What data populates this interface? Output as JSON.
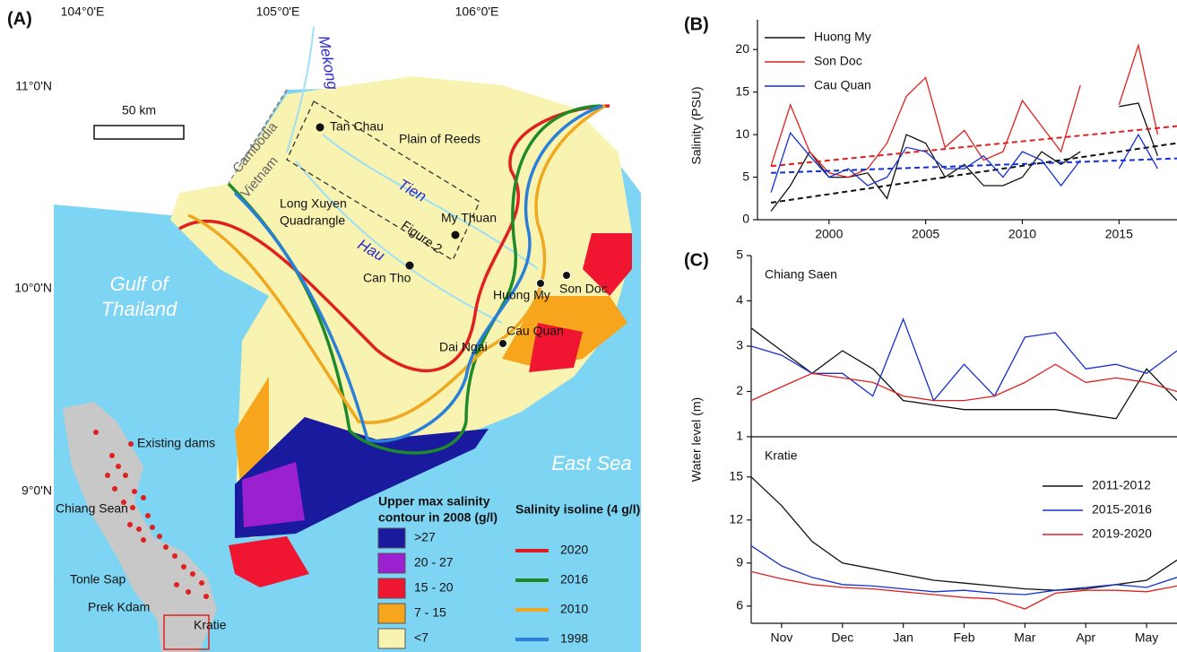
{
  "map": {
    "panel": "(A)",
    "lon_ticks": [
      "104°0'E",
      "105°0'E",
      "106°0'E"
    ],
    "lat_ticks": [
      "11°0'N",
      "10°0'N",
      "9°0'N"
    ],
    "scale": "50 km",
    "rivers": {
      "mekong": "Mekong",
      "tien": "Tien",
      "hau": "Hau"
    },
    "countries": [
      "Cambodia",
      "Vietnam"
    ],
    "regions": {
      "plain_of_reeds": "Plain of Reeds",
      "long_xuyen": [
        "Long Xuyen",
        "Quadrangle"
      ]
    },
    "figure_box": "Figure 2",
    "stations": [
      "Tan Chau",
      "My Thuan",
      "Can Tho",
      "Huong My",
      "Son Doc",
      "Cau Quan",
      "Dai Ngai"
    ],
    "seas": {
      "gulf": [
        "Gulf of",
        "Thailand"
      ],
      "east": "East Sea"
    },
    "inset": {
      "dams": "Existing dams",
      "places": [
        "Chiang Sean",
        "Tonle Sap",
        "Prek Kdam",
        "Kratie"
      ]
    },
    "salinity_legend": {
      "title": [
        "Upper max salinity",
        "contour in 2008 (g/l)"
      ],
      "items": [
        {
          "label": ">27",
          "color": "#1a1a9e"
        },
        {
          "label": "20 - 27",
          "color": "#9a20d0"
        },
        {
          "label": "15 - 20",
          "color": "#f01530"
        },
        {
          "label": "7 - 15",
          "color": "#f6a51c"
        },
        {
          "label": "<7",
          "color": "#f8f3b0"
        }
      ]
    },
    "isoline_legend": {
      "title": "Salinity isoline (4 g/l)",
      "items": [
        {
          "label": "2020",
          "color": "#e02020"
        },
        {
          "label": "2016",
          "color": "#1e8a2a"
        },
        {
          "label": "2010",
          "color": "#f0a820"
        },
        {
          "label": "1998",
          "color": "#2a80d8"
        }
      ]
    }
  },
  "chart_data": [
    {
      "type": "line",
      "panel": "(B)",
      "ylabel": "Salinity (PSU)",
      "legend": "upper left",
      "x": [
        1997,
        1998,
        1999,
        2000,
        2001,
        2002,
        2003,
        2004,
        2005,
        2006,
        2007,
        2008,
        2009,
        2010,
        2011,
        2012,
        2013,
        2014,
        2015,
        2016,
        2017
      ],
      "xlim": [
        1996.3,
        2018
      ],
      "xticks": [
        2000,
        2005,
        2010,
        2015
      ],
      "ylim": [
        0,
        23.5
      ],
      "yticks": [
        0,
        5,
        10,
        15,
        20
      ],
      "series": [
        {
          "name": "Huong My",
          "color": "#111111",
          "values": [
            1,
            4,
            8,
            5,
            5,
            5.5,
            2.5,
            10,
            9,
            5,
            6.5,
            4,
            4,
            5,
            8,
            6.5,
            8,
            null,
            13.3,
            13.7,
            7.5
          ],
          "trend": [
            2,
            9
          ]
        },
        {
          "name": "Son Doc",
          "color": "#e02020",
          "values": [
            6.3,
            13.5,
            8,
            5.5,
            5,
            6,
            9,
            14.5,
            16.7,
            8.5,
            10.5,
            7,
            8,
            14,
            11,
            8,
            15.8,
            null,
            13.5,
            20.5,
            10
          ],
          "trend": [
            6.3,
            11
          ]
        },
        {
          "name": "Cau Quan",
          "color": "#1530d0",
          "values": [
            3.2,
            10.2,
            7.5,
            5,
            6,
            4,
            5,
            8.5,
            8,
            6,
            6,
            7.5,
            5,
            8,
            7,
            4,
            7,
            null,
            6,
            10,
            6
          ],
          "trend": [
            5.5,
            7.2
          ]
        }
      ]
    },
    {
      "type": "line",
      "panel": "(C)",
      "title": "Chiang Saen",
      "ylabel": "Water level (m)",
      "x": [
        0,
        0.5,
        1,
        1.5,
        2,
        2.5,
        3,
        3.5,
        4,
        4.5,
        5,
        5.5,
        6,
        6.5,
        7
      ],
      "xlim": [
        0,
        7
      ],
      "ylim": [
        1,
        5
      ],
      "yticks": [
        1,
        2,
        3,
        4,
        5
      ],
      "series": [
        {
          "color": "#111111",
          "values": [
            3.4,
            2.9,
            2.4,
            2.9,
            2.5,
            1.8,
            1.7,
            1.6,
            1.6,
            1.6,
            1.6,
            1.5,
            1.4,
            2.5,
            1.8
          ]
        },
        {
          "color": "#1530d0",
          "values": [
            3,
            2.8,
            2.4,
            2.4,
            1.9,
            3.6,
            1.8,
            2.6,
            1.9,
            3.2,
            3.3,
            2.5,
            2.6,
            2.4,
            2.9
          ]
        },
        {
          "color": "#e02020",
          "values": [
            1.8,
            2.1,
            2.4,
            2.3,
            2.2,
            1.9,
            1.8,
            1.8,
            1.9,
            2.2,
            2.6,
            2.2,
            2.3,
            2.2,
            2
          ]
        }
      ]
    },
    {
      "type": "line",
      "title": "Kratie",
      "legend": "right",
      "x": [
        0,
        0.5,
        1,
        1.5,
        2,
        2.5,
        3,
        3.5,
        4,
        4.5,
        5,
        5.5,
        6,
        6.5,
        7
      ],
      "xlim": [
        0,
        7
      ],
      "xticks": [
        {
          "value": 0.5,
          "label": "Nov"
        },
        {
          "value": 1.5,
          "label": "Dec"
        },
        {
          "value": 2.5,
          "label": "Jan"
        },
        {
          "value": 3.5,
          "label": "Feb"
        },
        {
          "value": 4.5,
          "label": "Mar"
        },
        {
          "value": 5.5,
          "label": "Apr"
        },
        {
          "value": 6.5,
          "label": "May"
        }
      ],
      "ylim": [
        4.8,
        17.8
      ],
      "yticks": [
        6,
        9,
        12,
        15
      ],
      "series": [
        {
          "name": "2011-2012",
          "color": "#111111",
          "values": [
            15,
            13,
            10.5,
            9,
            8.6,
            8.2,
            7.8,
            7.6,
            7.4,
            7.2,
            7.1,
            7.2,
            7.5,
            7.8,
            9.2
          ]
        },
        {
          "name": "2015-2016",
          "color": "#1530d0",
          "values": [
            10.2,
            8.8,
            8,
            7.5,
            7.4,
            7.2,
            7,
            7.1,
            6.9,
            6.8,
            7.1,
            7.3,
            7.5,
            7.3,
            8
          ]
        },
        {
          "name": "2019-2020",
          "color": "#e02020",
          "values": [
            8.4,
            7.9,
            7.5,
            7.3,
            7.2,
            7,
            6.8,
            6.6,
            6.5,
            5.8,
            6.9,
            7.1,
            7.1,
            7,
            7.4
          ]
        }
      ]
    }
  ]
}
